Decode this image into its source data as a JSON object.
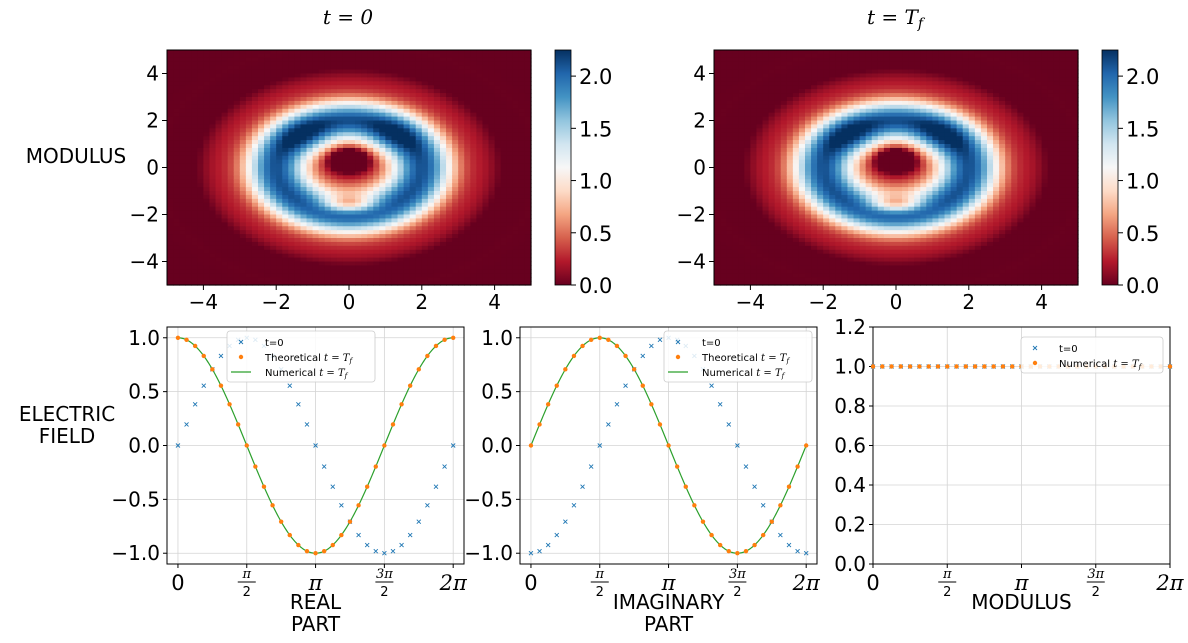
{
  "row_labels": {
    "top": "MODULUS",
    "bottom": [
      "ELECTRIC",
      "FIELD"
    ]
  },
  "chart_data": [
    {
      "type": "heatmap",
      "title": "t = 0",
      "x_range": [
        -5,
        5
      ],
      "y_range": [
        -5,
        5
      ],
      "x_ticks": [
        "−4",
        "−2",
        "0",
        "2",
        "4"
      ],
      "y_ticks": [
        "−4",
        "−2",
        "0",
        "2",
        "4"
      ],
      "colormap": "RdBu",
      "colormap_stops": [
        "#67001f",
        "#b2182b",
        "#d6604d",
        "#f4a582",
        "#fddbc7",
        "#f7f7f7",
        "#d1e5f0",
        "#92c5de",
        "#4393c3",
        "#2166ac",
        "#053061"
      ],
      "colorbar": {
        "range": [
          0,
          2.25
        ],
        "ticks": [
          "0.0",
          "0.5",
          "1.0",
          "1.5",
          "2.0"
        ]
      },
      "features": {
        "ring_radius": 2.0,
        "ring_peak": 2.1,
        "lobes_y": 1.2,
        "center_dip_y": 0.4,
        "lower_dark_spot_y": -1.6
      }
    },
    {
      "type": "heatmap",
      "title": "t = T_f",
      "x_range": [
        -5,
        5
      ],
      "y_range": [
        -5,
        5
      ],
      "x_ticks": [
        "−4",
        "−2",
        "0",
        "2",
        "4"
      ],
      "y_ticks": [
        "−4",
        "−2",
        "0",
        "2",
        "4"
      ],
      "colormap": "RdBu",
      "colorbar": {
        "range": [
          0,
          2.25
        ],
        "ticks": [
          "0.0",
          "0.5",
          "1.0",
          "1.5",
          "2.0"
        ]
      }
    },
    {
      "type": "line",
      "xlabel": [
        "REAL",
        "PART"
      ],
      "xlim": [
        -0.25,
        6.53
      ],
      "ylim": [
        -1.1,
        1.1
      ],
      "x_ticks": [
        "0",
        "π/2",
        "π",
        "3π/2",
        "2π"
      ],
      "y_ticks": [
        "−1.0",
        "−0.5",
        "0.0",
        "0.5",
        "1.0"
      ],
      "n_points": 33,
      "series": [
        {
          "name": "t=0",
          "marker": "x",
          "color": "#1f77b4",
          "function": "sin(x)"
        },
        {
          "name": "Theoretical t = T_f",
          "marker": "dot",
          "color": "#ff7f0e",
          "function": "cos(x)"
        },
        {
          "name": "Numerical t = T_f",
          "marker": "line",
          "color": "#2ca02c",
          "function": "cos(x)"
        }
      ]
    },
    {
      "type": "line",
      "xlabel": [
        "IMAGINARY",
        "PART"
      ],
      "xlim": [
        -0.25,
        6.53
      ],
      "ylim": [
        -1.1,
        1.1
      ],
      "x_ticks": [
        "0",
        "π/2",
        "π",
        "3π/2",
        "2π"
      ],
      "y_ticks": [
        "−1.0",
        "−0.5",
        "0.0",
        "0.5",
        "1.0"
      ],
      "n_points": 33,
      "series": [
        {
          "name": "t=0",
          "marker": "x",
          "color": "#1f77b4",
          "function": "-cos(x)"
        },
        {
          "name": "Theoretical t = T_f",
          "marker": "dot",
          "color": "#ff7f0e",
          "function": "sin(x)"
        },
        {
          "name": "Numerical t = T_f",
          "marker": "line",
          "color": "#2ca02c",
          "function": "sin(x)"
        }
      ]
    },
    {
      "type": "scatter",
      "xlabel": [
        "MODULUS"
      ],
      "xlim": [
        0,
        6.283
      ],
      "ylim": [
        0,
        1.2
      ],
      "x_ticks": [
        "0",
        "π/2",
        "π",
        "3π/2",
        "2π"
      ],
      "y_ticks": [
        "0.0",
        "0.2",
        "0.4",
        "0.6",
        "0.8",
        "1.0",
        "1.2"
      ],
      "n_points": 33,
      "series": [
        {
          "name": "t=0",
          "marker": "x",
          "color": "#1f77b4",
          "function": "1"
        },
        {
          "name": "Numerical t = T_f",
          "marker": "dot",
          "color": "#ff7f0e",
          "function": "1"
        }
      ]
    }
  ]
}
